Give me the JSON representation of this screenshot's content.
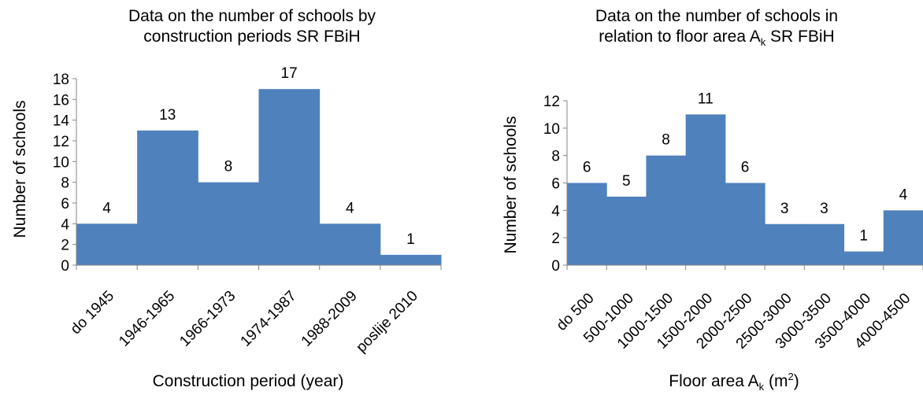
{
  "chart_data": [
    {
      "type": "bar",
      "title_line1": "Data on the number of schools by",
      "title_line2": "construction periods SR FBiH",
      "xlabel": "Construction period (year)",
      "ylabel": "Number of schools",
      "ylim": [
        0,
        18
      ],
      "yticks": [
        0,
        2,
        4,
        6,
        8,
        10,
        12,
        14,
        16,
        18
      ],
      "categories": [
        "do 1945",
        "1946-1965",
        "1966-1973",
        "1974-1987",
        "1988-2009",
        "poslije 2010"
      ],
      "values": [
        4,
        13,
        8,
        17,
        4,
        1
      ],
      "data_labels": true,
      "grid": false,
      "color": "#4F81BD"
    },
    {
      "type": "bar",
      "title_line1": "Data on the number of schools in",
      "title_line2_main": "relation to floor area A",
      "title_line2_sub": "k",
      "title_line2_tail": " SR FBiH",
      "xlabel_main": "Floor area A",
      "xlabel_sub": "k",
      "xlabel_mid": " (m",
      "xlabel_sup": "2",
      "xlabel_tail": ")",
      "ylabel": "Number of schools",
      "ylim": [
        0,
        12
      ],
      "yticks": [
        0,
        2,
        4,
        6,
        8,
        10,
        12
      ],
      "categories": [
        "do 500",
        "500-1000",
        "1000-1500",
        "1500-2000",
        "2000-2500",
        "2500-3000",
        "3000-3500",
        "3500-4000",
        "4000-4500"
      ],
      "values": [
        6,
        5,
        8,
        11,
        6,
        3,
        3,
        1,
        4
      ],
      "data_labels": true,
      "grid": false,
      "color": "#4F81BD"
    }
  ]
}
